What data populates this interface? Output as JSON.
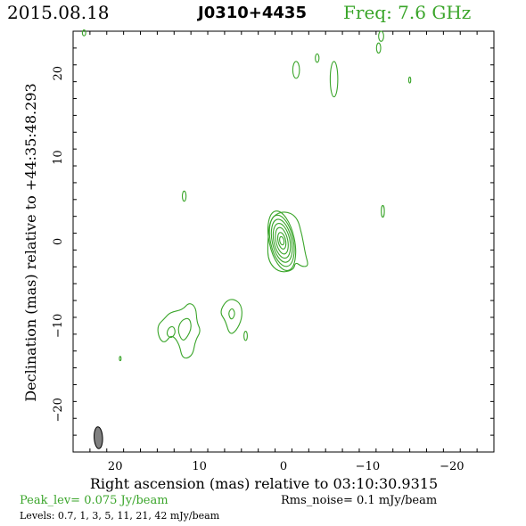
{
  "header": {
    "date": "2015.08.18",
    "source": "J0310+4435",
    "freq": "Freq: 7.6 GHz"
  },
  "footer": {
    "peak": "Peak_lev=  0.075 Jy/beam",
    "rms": "Rms_noise=   0.1 mJy/beam",
    "levels": "Levels: 0.7,    1,    3,    5,   11,   21,   42 mJy/beam"
  },
  "colors": {
    "contour": "#3aa52a",
    "axes": "#000000",
    "beam": "#808080"
  },
  "chart_data": {
    "type": "contour",
    "title": "J0310+4435",
    "xlabel": "Right ascension (mas) relative to 03:10:30.9315",
    "ylabel": "Declination (mas) relative to +44:35:48.293",
    "xlim": [
      25,
      -25
    ],
    "ylim": [
      -25,
      25
    ],
    "xticks": [
      20,
      10,
      0,
      -10,
      -20
    ],
    "yticks": [
      20,
      10,
      0,
      -10,
      -20
    ],
    "xtick_labels": [
      "20",
      "10",
      "0",
      "−10",
      "−20"
    ],
    "ytick_labels": [
      "20",
      "10",
      "0",
      "−10",
      "−20"
    ],
    "levels_mJy_per_beam": [
      0.7,
      1,
      3,
      5,
      11,
      21,
      42
    ],
    "peak_Jy_per_beam": 0.075,
    "rms_mJy_per_beam": 0.1,
    "core": {
      "x": 0.2,
      "y": 0.1,
      "rings": [
        {
          "rx": 1.5,
          "ry": 3.6
        },
        {
          "rx": 1.35,
          "ry": 3.1
        },
        {
          "rx": 1.15,
          "ry": 2.6
        },
        {
          "rx": 0.95,
          "ry": 2.1
        },
        {
          "rx": 0.7,
          "ry": 1.6
        },
        {
          "rx": 0.45,
          "ry": 1.0
        },
        {
          "rx": 0.25,
          "ry": 0.5
        }
      ]
    },
    "outer_core": [
      [
        1.6,
        2.8
      ],
      [
        0,
        3.7
      ],
      [
        -1.6,
        3.0
      ],
      [
        -2.2,
        0.8
      ],
      [
        -2.6,
        -1.5
      ],
      [
        -3.0,
        -2.9
      ],
      [
        -2.2,
        -3.0
      ],
      [
        -1.4,
        -2.4
      ],
      [
        -1.2,
        -3.4
      ],
      [
        0.5,
        -3.7
      ],
      [
        1.8,
        -2.4
      ],
      [
        1.9,
        -0.2
      ]
    ],
    "jet_knot_a": [
      [
        14.2,
        -9.2
      ],
      [
        13.5,
        -8.4
      ],
      [
        12.0,
        -8.1
      ],
      [
        11.2,
        -7.2
      ],
      [
        10.4,
        -7.8
      ],
      [
        10.3,
        -9.6
      ],
      [
        9.8,
        -10.6
      ],
      [
        10.5,
        -11.8
      ],
      [
        10.8,
        -13.6
      ],
      [
        12.0,
        -14.0
      ],
      [
        12.4,
        -12.1
      ],
      [
        13.3,
        -11.0
      ],
      [
        14.1,
        -12.1
      ],
      [
        14.8,
        -11.5
      ],
      [
        15.0,
        -10.0
      ]
    ],
    "jet_knot_a_inner": [
      [
        12.2,
        -9.4
      ],
      [
        11.2,
        -9.0
      ],
      [
        10.9,
        -10.2
      ],
      [
        11.4,
        -11.3
      ],
      [
        12.0,
        -11.9
      ],
      [
        12.6,
        -10.6
      ]
    ],
    "jet_knot_a_small": [
      [
        13.7,
        -10.3
      ],
      [
        13.1,
        -10.0
      ],
      [
        12.8,
        -10.8
      ],
      [
        13.3,
        -11.5
      ],
      [
        13.9,
        -11.1
      ]
    ],
    "jet_knot_b": [
      [
        5.9,
        -6.8
      ],
      [
        5.0,
        -7.5
      ],
      [
        4.9,
        -9.1
      ],
      [
        5.6,
        -10.6
      ],
      [
        6.4,
        -11.1
      ],
      [
        6.9,
        -9.4
      ],
      [
        7.6,
        -8.4
      ],
      [
        6.8,
        -7.0
      ]
    ],
    "jet_knot_b_inner": [
      [
        6.1,
        -7.8
      ],
      [
        5.7,
        -8.6
      ],
      [
        6.2,
        -9.4
      ],
      [
        6.6,
        -8.5
      ]
    ],
    "spots": [
      {
        "x": 23.7,
        "y": 24.8,
        "rx": 0.2,
        "ry": 0.35
      },
      {
        "x": -11.6,
        "y": 24.4,
        "rx": 0.3,
        "ry": 0.6
      },
      {
        "x": -11.3,
        "y": 23.0,
        "rx": 0.25,
        "ry": 0.6
      },
      {
        "x": -1.5,
        "y": 20.4,
        "rx": 0.4,
        "ry": 1.0
      },
      {
        "x": -4.0,
        "y": 21.8,
        "rx": 0.22,
        "ry": 0.5
      },
      {
        "x": -6.0,
        "y": 19.3,
        "rx": 0.45,
        "ry": 2.1
      },
      {
        "x": -15.0,
        "y": 19.2,
        "rx": 0.12,
        "ry": 0.35
      },
      {
        "x": 11.8,
        "y": 5.4,
        "rx": 0.22,
        "ry": 0.6
      },
      {
        "x": -11.8,
        "y": 3.6,
        "rx": 0.18,
        "ry": 0.7
      },
      {
        "x": 19.4,
        "y": -13.9,
        "rx": 0.1,
        "ry": 0.25
      },
      {
        "x": 4.5,
        "y": -11.2,
        "rx": 0.2,
        "ry": 0.55
      }
    ],
    "beam": {
      "x": 22.0,
      "y": -23.3,
      "major_mas": 2.6,
      "minor_mas": 1.0
    }
  }
}
